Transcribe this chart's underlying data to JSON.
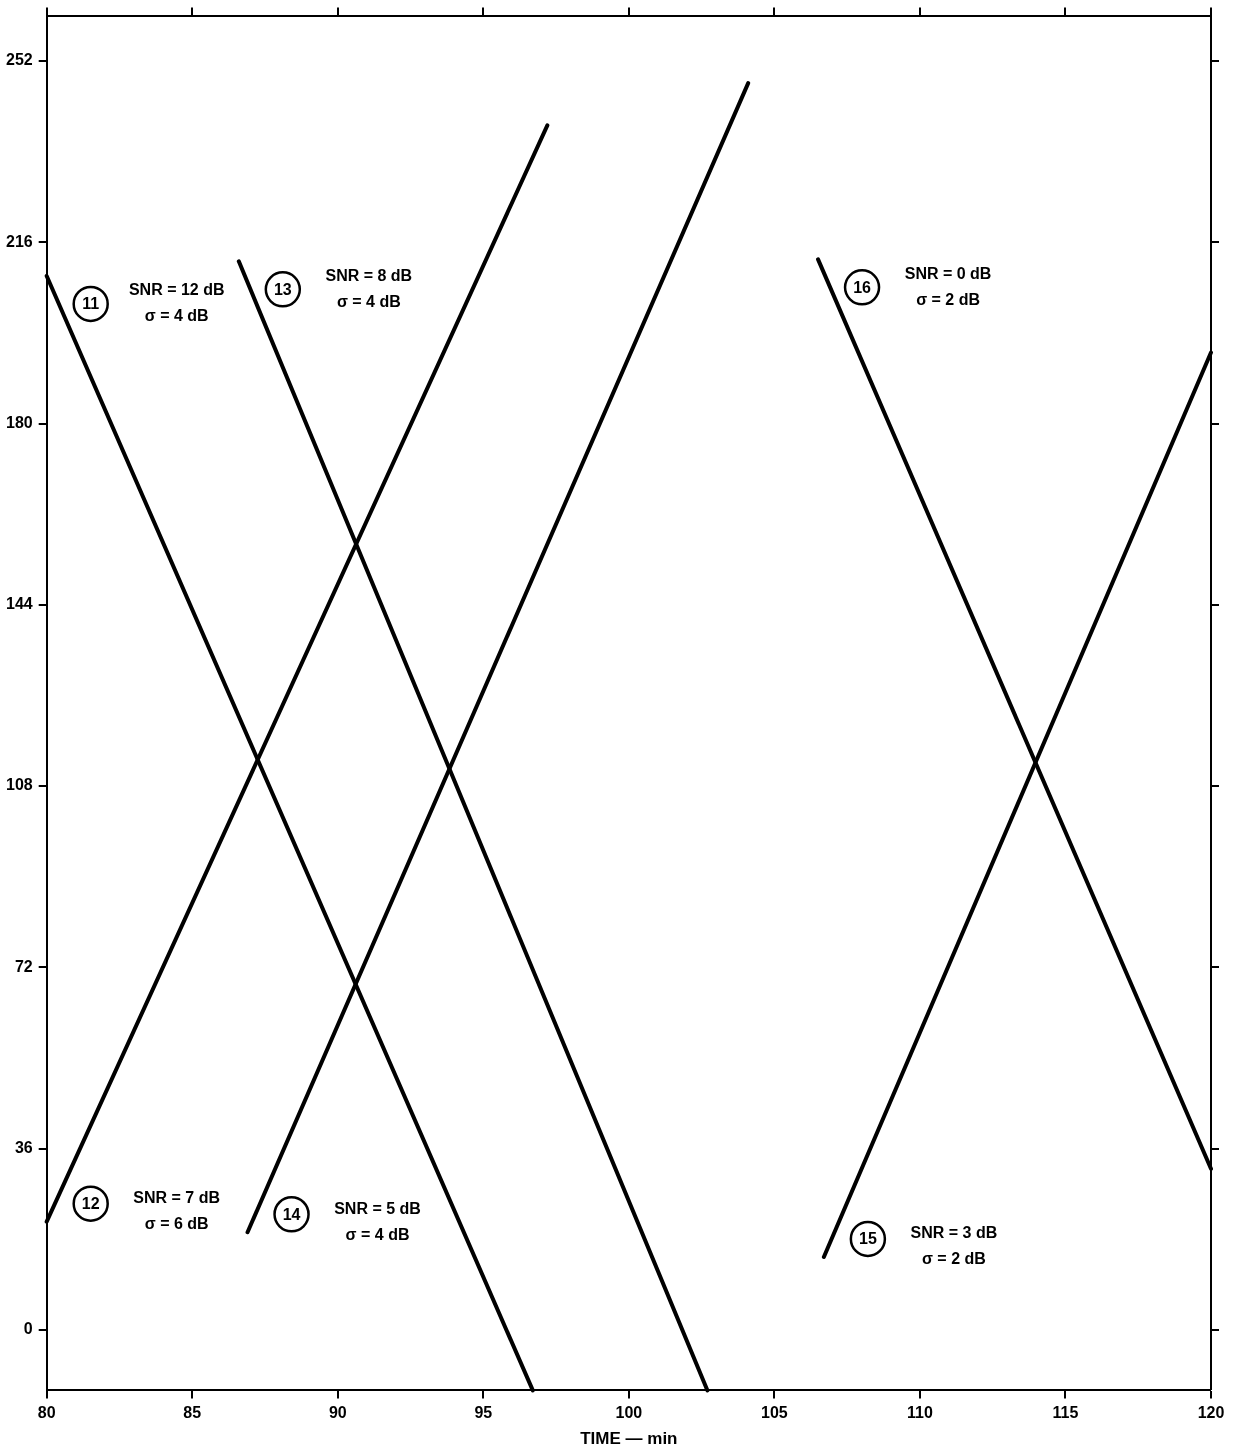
{
  "chart_data": {
    "type": "line",
    "xlabel": "TIME — min",
    "xlim": [
      80,
      120
    ],
    "xticks": [
      80,
      85,
      90,
      95,
      100,
      105,
      110,
      115,
      120
    ],
    "ylim": [
      -12,
      261
    ],
    "yticks": [
      0,
      36,
      72,
      108,
      144,
      180,
      216,
      252
    ],
    "grid": false,
    "legend": false,
    "marker": "none",
    "line_style": "solid",
    "series": [
      {
        "name": "11",
        "color": "#000000",
        "x": [
          80,
          96.7
        ],
        "values": [
          209.3,
          -12
        ]
      },
      {
        "name": "12",
        "color": "#000000",
        "x": [
          80,
          97.2
        ],
        "values": [
          21.5,
          239.2
        ]
      },
      {
        "name": "13",
        "color": "#000000",
        "x": [
          86.6,
          102.7
        ],
        "values": [
          212.2,
          -12
        ]
      },
      {
        "name": "14",
        "color": "#000000",
        "x": [
          86.9,
          104.1
        ],
        "values": [
          19.4,
          247.6
        ]
      },
      {
        "name": "15",
        "color": "#000000",
        "x": [
          106.7,
          120
        ],
        "values": [
          14.5,
          194.1
        ]
      },
      {
        "name": "16",
        "color": "#000000",
        "x": [
          106.5,
          120
        ],
        "values": [
          212.6,
          32
        ]
      }
    ],
    "annotations": [
      "SNR = 12 dB\nσ = 4 dB",
      "SNR = 7 dB\nσ = 6 dB",
      "SNR = 8 dB\nσ = 4 dB",
      "SNR = 5 dB\nσ = 4 dB",
      "SNR = 3 dB\nσ = 2 dB",
      "SNR = 0 dB\nσ = 2 dB"
    ]
  }
}
